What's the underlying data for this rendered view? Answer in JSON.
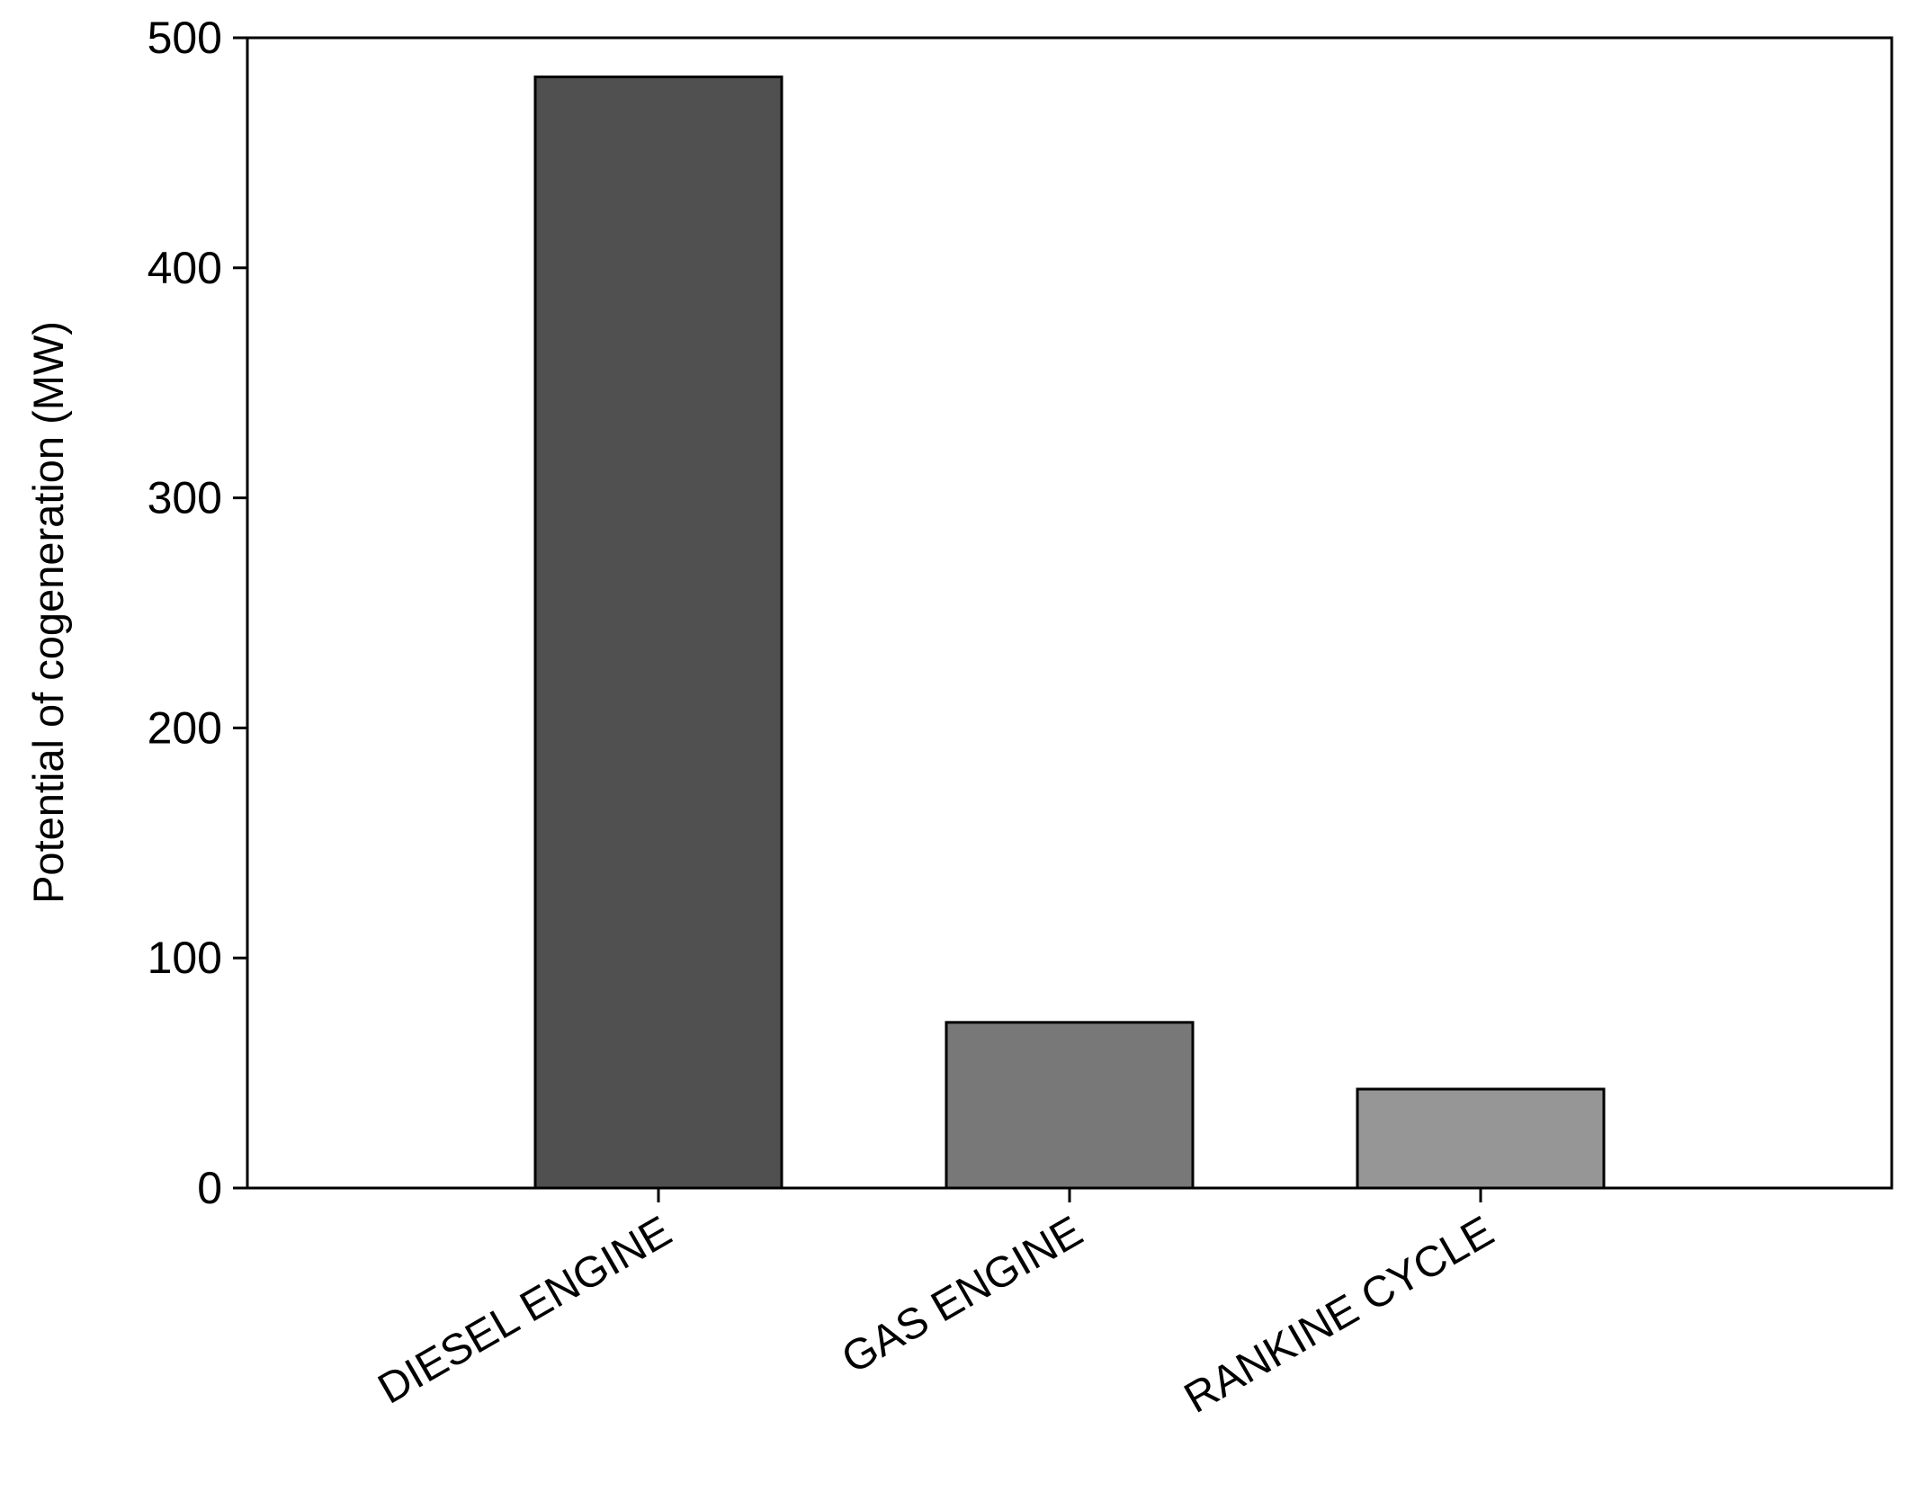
{
  "chart_data": {
    "type": "bar",
    "title": "",
    "xlabel": "",
    "ylabel": "Potential of cogeneration (MW)",
    "ylim": [
      0,
      500
    ],
    "yticks": [
      0,
      100,
      200,
      300,
      400,
      500
    ],
    "grid": false,
    "categories": [
      "DIESEL ENGINE",
      "GAS ENGINE",
      "RANKINE CYCLE"
    ],
    "values": [
      483,
      72,
      43
    ],
    "colors": [
      "#505050",
      "#787878",
      "#969696"
    ]
  }
}
